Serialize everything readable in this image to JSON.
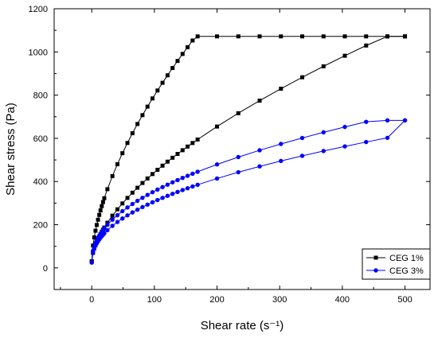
{
  "chart_data": {
    "type": "line",
    "title": "",
    "xlabel": "Shear rate (s⁻¹)",
    "ylabel": "Shear stress (Pa)",
    "xlim": [
      -60,
      540
    ],
    "ylim": [
      -100,
      1200
    ],
    "x_ticks": [
      0,
      100,
      200,
      300,
      400,
      500
    ],
    "y_ticks": [
      0,
      200,
      400,
      600,
      800,
      1000,
      1200
    ],
    "grid": false,
    "legend_position": "bottom-right",
    "series": [
      {
        "name": "CEG 1%",
        "color": "#000000",
        "marker": "square",
        "up_k": 26.0,
        "down_k": 48.5,
        "exponent": 0.6,
        "start_value": 30,
        "end_value": 1072
      },
      {
        "name": "CEG 3%",
        "color": "#0000ff",
        "marker": "circle",
        "up_k": 39.7,
        "down_k": 34.0,
        "exponent": 0.46,
        "start_value": 25,
        "end_value": 683
      }
    ]
  }
}
